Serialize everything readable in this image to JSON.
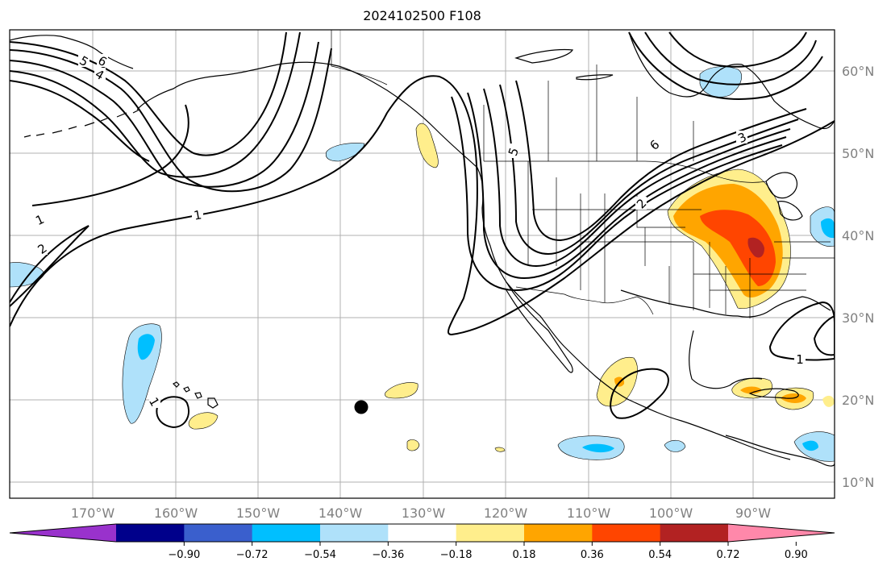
{
  "title": "2024102500 F108",
  "lon_labels": [
    "170°W",
    "160°W",
    "150°W",
    "140°W",
    "130°W",
    "120°W",
    "110°W",
    "100°W",
    "90°W"
  ],
  "lat_labels": [
    "60°N",
    "50°N",
    "40°N",
    "30°N",
    "20°N",
    "10°N"
  ],
  "colorbar": {
    "colors": [
      "#9932cc",
      "#00008b",
      "#3a5fcd",
      "#00bfff",
      "#afe1fa",
      "#ffffff",
      "#ffee8c",
      "#ffa500",
      "#ff4500",
      "#b22222",
      "#ff88aa"
    ],
    "tick_labels": [
      "−0.90",
      "−0.72",
      "−0.54",
      "−0.36",
      "−0.18",
      "0.18",
      "0.36",
      "0.54",
      "0.72",
      "0.90"
    ]
  },
  "contour_labels": [
    "5",
    "6",
    "4",
    "5",
    "6",
    "3",
    "2",
    "1",
    "1",
    "2",
    "1",
    "1"
  ]
}
